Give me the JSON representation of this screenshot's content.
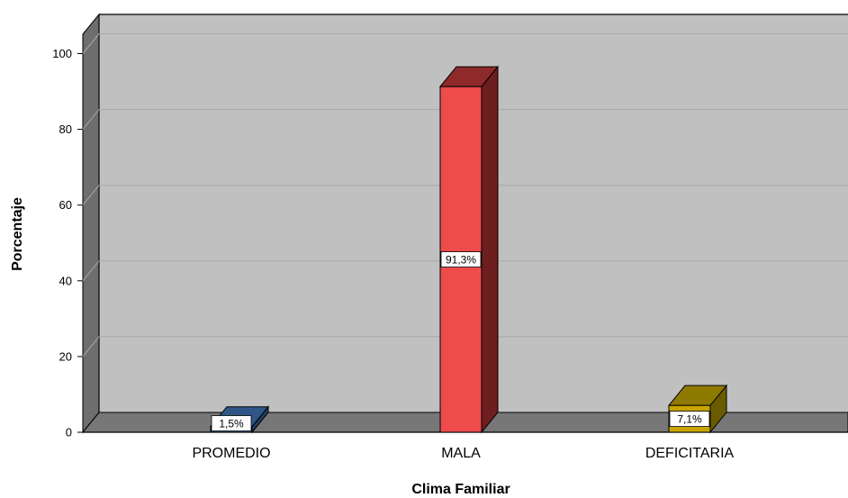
{
  "chart_data": {
    "type": "bar",
    "categories": [
      "PROMEDIO",
      "MALA",
      "DEFICITARIA"
    ],
    "values": [
      1.5,
      91.3,
      7.1
    ],
    "data_labels": [
      "1,5%",
      "91,3%",
      "7,1%"
    ],
    "xlabel": "Clima Familiar",
    "ylabel": "Porcentaje",
    "ylim": [
      0,
      100
    ],
    "yticks": [
      0,
      20,
      40,
      60,
      80,
      100
    ],
    "grid": true,
    "style": "3d",
    "colors": {
      "bars": [
        "#3d6fa6",
        "#ee4b4b",
        "#c9a400"
      ],
      "bar_tops": [
        "#2f5686",
        "#8e2a2a",
        "#8f7a00"
      ],
      "bar_sides": [
        "#1f3d66",
        "#6e1e1e",
        "#6b5b00"
      ],
      "wall": "#c0c0c0",
      "side_wall": "#6e6e6e",
      "floor": "#777777",
      "gridline": "#a8a8a8"
    }
  }
}
